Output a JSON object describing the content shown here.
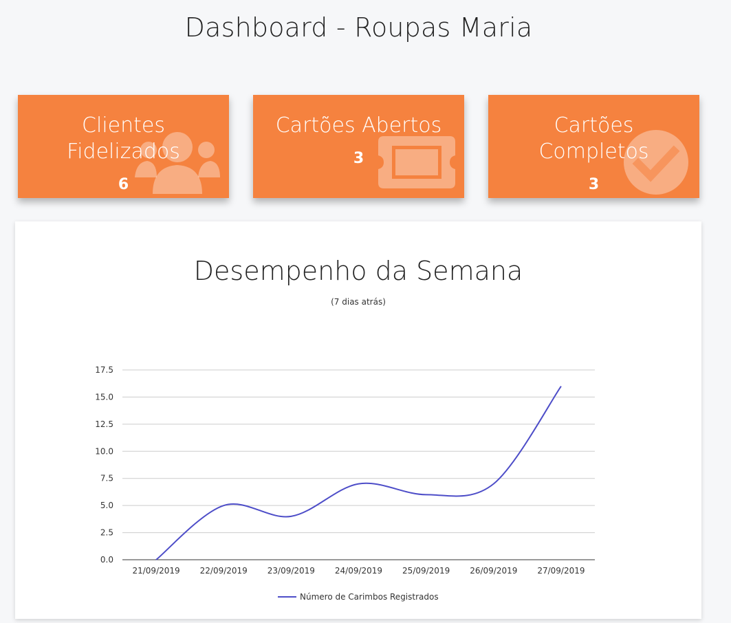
{
  "header": {
    "title": "Dashboard - Roupas Maria"
  },
  "cards": [
    {
      "label_lines": [
        "Clientes",
        "Fidelizados"
      ],
      "value": "6",
      "icon": "users-icon"
    },
    {
      "label_lines": [
        "Cartões Abertos"
      ],
      "value": "3",
      "icon": "ticket-icon"
    },
    {
      "label_lines": [
        "Cartões",
        "Completos"
      ],
      "value": "3",
      "icon": "check-circle-icon"
    }
  ],
  "colors": {
    "card": "#f5823f",
    "line": "#4d4dc8"
  },
  "chart_data": {
    "type": "line",
    "title": "Desempenho da Semana",
    "subtitle": "(7 dias atrás)",
    "categories": [
      "21/09/2019",
      "22/09/2019",
      "23/09/2019",
      "24/09/2019",
      "25/09/2019",
      "26/09/2019",
      "27/09/2019"
    ],
    "series": [
      {
        "name": "Número de Carimbos Registrados",
        "values": [
          0,
          5,
          4,
          7,
          6,
          7,
          16
        ]
      }
    ],
    "yticks": [
      "0.0",
      "2.5",
      "5.0",
      "7.5",
      "10.0",
      "12.5",
      "15.0",
      "17.5"
    ],
    "ylim": [
      0,
      17.5
    ],
    "grid": true,
    "legend": "bottom"
  }
}
